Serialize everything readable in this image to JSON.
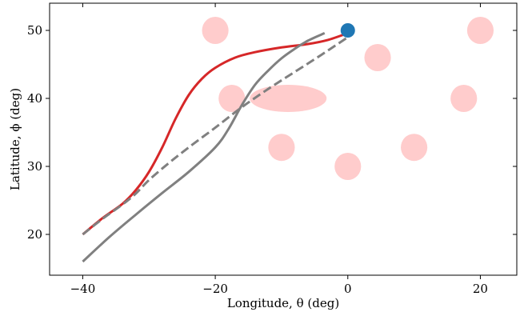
{
  "chart_data": {
    "type": "line",
    "xlabel": "Longitude, θ (deg)",
    "ylabel": "Latitude, ϕ (deg)",
    "xlim": [
      -45,
      25.5
    ],
    "ylim": [
      14,
      54
    ],
    "xticks": [
      -40,
      -20,
      0,
      20
    ],
    "xtick_labels": [
      "−40",
      "−20",
      "0",
      "20"
    ],
    "yticks": [
      20,
      30,
      40,
      50
    ],
    "ytick_labels": [
      "20",
      "30",
      "40",
      "50"
    ],
    "grid": false,
    "series": [
      {
        "style": "solid",
        "color": "#d62728",
        "x": [
          -40,
          -37,
          -34,
          -32,
          -30,
          -28,
          -26,
          -24,
          -22,
          -20,
          -17,
          -14,
          -10,
          -6,
          -3,
          0
        ],
        "y": [
          20,
          22.4,
          24.5,
          26.5,
          29.2,
          32.8,
          37.0,
          40.5,
          42.9,
          44.5,
          46.0,
          46.8,
          47.5,
          48.0,
          48.6,
          49.6
        ]
      },
      {
        "style": "dashed",
        "color": "#808080",
        "x": [
          -40,
          -37,
          -34,
          -32,
          -30,
          -27,
          -24,
          -20,
          -16,
          -12,
          -8,
          -4,
          0
        ],
        "y": [
          20,
          22.3,
          24.4,
          26.0,
          28.0,
          30.5,
          32.8,
          35.7,
          38.7,
          41.4,
          43.9,
          46.4,
          49.0
        ]
      },
      {
        "style": "solid",
        "color": "#808080",
        "x": [
          -40,
          -36,
          -32,
          -28,
          -24,
          -20,
          -18,
          -16,
          -14,
          -12,
          -10,
          -8,
          -6,
          -3.5
        ],
        "y": [
          16.0,
          19.6,
          22.9,
          26.1,
          29.2,
          32.8,
          35.5,
          39.0,
          42.0,
          44.1,
          45.9,
          47.3,
          48.5,
          49.6
        ]
      }
    ],
    "markers": [
      {
        "x": 0,
        "y": 50,
        "color": "#1f77b4"
      }
    ],
    "regions": {
      "color": "#ffcccc",
      "circles": [
        {
          "x": -20,
          "y": 50,
          "r": 2
        },
        {
          "x": 20,
          "y": 50,
          "r": 2
        },
        {
          "x": 4.5,
          "y": 46,
          "r": 2
        },
        {
          "x": -17.5,
          "y": 40,
          "r": 2
        },
        {
          "x": 17.5,
          "y": 40,
          "r": 2
        },
        {
          "x": -10,
          "y": 32.8,
          "r": 2
        },
        {
          "x": 10,
          "y": 32.8,
          "r": 2
        },
        {
          "x": 0,
          "y": 30,
          "r": 2
        }
      ],
      "ellipses": [
        {
          "x": -9,
          "y": 40,
          "rx": 5.8,
          "ry": 2
        }
      ]
    }
  }
}
